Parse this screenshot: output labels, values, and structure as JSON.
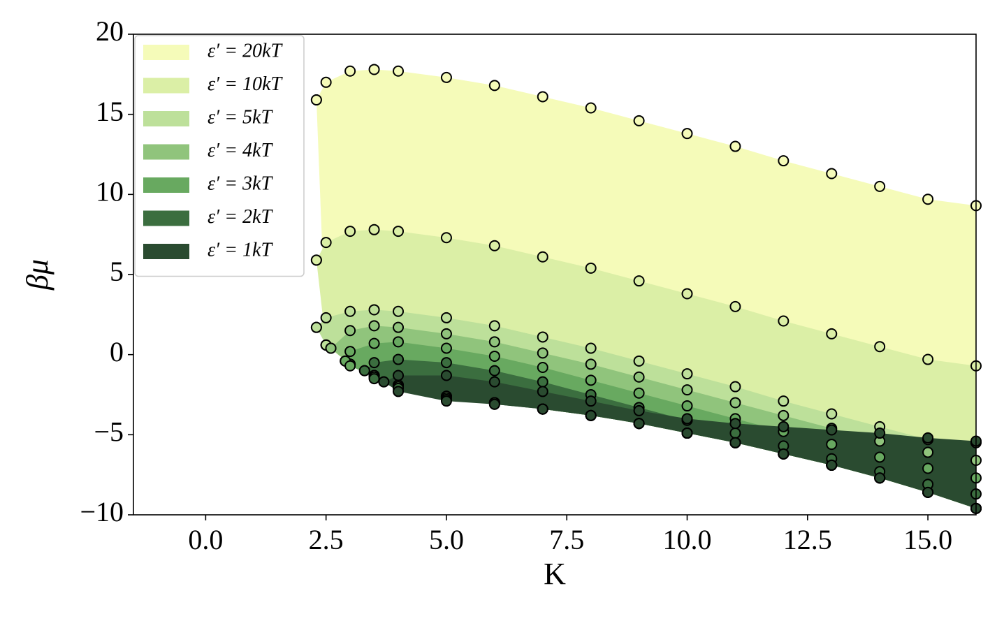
{
  "chart_data": {
    "type": "region-scatter",
    "xlabel": "K",
    "ylabel": "βμ",
    "xlim": [
      -1.5,
      16
    ],
    "ylim": [
      -10,
      20
    ],
    "xticks": [
      {
        "value": 0,
        "label": "0.0"
      },
      {
        "value": 2.5,
        "label": "2.5"
      },
      {
        "value": 5,
        "label": "5.0"
      },
      {
        "value": 7.5,
        "label": "7.5"
      },
      {
        "value": 10,
        "label": "10.0"
      },
      {
        "value": 12.5,
        "label": "12.5"
      },
      {
        "value": 15,
        "label": "15.0"
      }
    ],
    "yticks": [
      {
        "value": -10,
        "label": "−10"
      },
      {
        "value": -5,
        "label": "−5"
      },
      0,
      5,
      10,
      15,
      20
    ],
    "legend": "upper-left",
    "series": [
      {
        "name": "ε′ = 20kT",
        "color": "#f5fbb9",
        "x": [
          2.3,
          2.5,
          3,
          3.5,
          4,
          5,
          6,
          7,
          8,
          9,
          10,
          11,
          12,
          13,
          14,
          15,
          16
        ],
        "upper": [
          15.9,
          17.0,
          17.7,
          17.8,
          17.7,
          17.3,
          16.8,
          16.1,
          15.4,
          14.6,
          13.8,
          13.0,
          12.1,
          11.3,
          10.5,
          9.7,
          9.3
        ],
        "lower": [
          15.9,
          0.6,
          -0.6,
          -1.3,
          -1.9,
          -2.6,
          -3.0,
          -3.4,
          -3.8,
          -4.3,
          -4.9,
          -5.5,
          -6.2,
          -6.9,
          -7.7,
          -8.6,
          -9.6
        ]
      },
      {
        "name": "ε′ = 10kT",
        "color": "#dbefa6",
        "x": [
          2.3,
          2.5,
          3,
          3.5,
          4,
          5,
          6,
          7,
          8,
          9,
          10,
          11,
          12,
          13,
          14,
          15,
          16
        ],
        "upper": [
          5.9,
          7.0,
          7.7,
          7.8,
          7.7,
          7.3,
          6.8,
          6.1,
          5.4,
          4.6,
          3.8,
          3.0,
          2.1,
          1.3,
          0.5,
          -0.3,
          -0.7
        ],
        "lower": [
          5.9,
          0.6,
          -0.6,
          -1.3,
          -1.9,
          -2.6,
          -3.0,
          -3.4,
          -3.8,
          -4.3,
          -4.9,
          -5.5,
          -6.2,
          -6.9,
          -7.7,
          -8.6,
          -9.6
        ]
      },
      {
        "name": "ε′ = 5kT",
        "color": "#bde09a",
        "x": [
          2.3,
          2.5,
          3,
          3.5,
          4,
          5,
          6,
          7,
          8,
          9,
          10,
          11,
          12,
          13,
          14,
          15,
          16
        ],
        "upper": [
          1.7,
          2.3,
          2.7,
          2.8,
          2.7,
          2.3,
          1.8,
          1.1,
          0.4,
          -0.4,
          -1.2,
          -2.0,
          -2.9,
          -3.7,
          -4.5,
          -5.3,
          -5.5
        ],
        "lower": [
          1.7,
          0.6,
          -0.6,
          -1.3,
          -1.9,
          -2.6,
          -3.0,
          -3.4,
          -3.8,
          -4.3,
          -4.9,
          -5.5,
          -6.2,
          -6.9,
          -7.7,
          -8.6,
          -9.6
        ]
      },
      {
        "name": "ε′ = 4kT",
        "color": "#90c47c",
        "x": [
          2.6,
          3,
          3.5,
          4,
          5,
          6,
          7,
          8,
          9,
          10,
          11,
          12,
          13,
          14,
          15,
          16
        ],
        "upper": [
          0.4,
          1.5,
          1.8,
          1.7,
          1.3,
          0.8,
          0.1,
          -0.6,
          -1.4,
          -2.2,
          -3.0,
          -3.8,
          -4.6,
          -5.4,
          -6.1,
          -6.6
        ],
        "lower": [
          0.4,
          -0.6,
          -1.3,
          -1.9,
          -2.6,
          -3.0,
          -3.4,
          -3.8,
          -4.3,
          -4.9,
          -5.5,
          -6.2,
          -6.9,
          -7.7,
          -8.6,
          -9.6
        ]
      },
      {
        "name": "ε′ = 3kT",
        "color": "#68a960",
        "x": [
          2.9,
          3,
          3.5,
          4,
          5,
          6,
          7,
          8,
          9,
          10,
          11,
          12,
          13,
          14,
          15,
          16
        ],
        "upper": [
          -0.4,
          0.2,
          0.7,
          0.8,
          0.4,
          -0.1,
          -0.8,
          -1.6,
          -2.4,
          -3.2,
          -4.0,
          -4.8,
          -5.6,
          -6.4,
          -7.1,
          -7.7
        ],
        "lower": [
          -0.4,
          -0.7,
          -1.4,
          -2.0,
          -2.7,
          -3.0,
          -3.4,
          -3.8,
          -4.3,
          -4.9,
          -5.5,
          -6.2,
          -6.9,
          -7.7,
          -8.6,
          -9.6
        ]
      },
      {
        "name": "ε′ = 2kT",
        "color": "#3b6e3f",
        "x": [
          3.3,
          3.5,
          4,
          5,
          6,
          7,
          8,
          9,
          10,
          11,
          12,
          13,
          14,
          15,
          16
        ],
        "upper": [
          -1.0,
          -0.5,
          -0.3,
          -0.5,
          -1.0,
          -1.7,
          -2.5,
          -3.3,
          -4.1,
          -4.9,
          -5.7,
          -6.5,
          -7.3,
          -8.1,
          -8.7
        ],
        "lower": [
          -1.0,
          -1.5,
          -2.1,
          -2.8,
          -3.1,
          -3.4,
          -3.8,
          -4.3,
          -4.9,
          -5.5,
          -6.2,
          -6.9,
          -7.7,
          -8.6,
          -9.6
        ]
      },
      {
        "name": "ε′ = 1kT",
        "color": "#2a4b30",
        "x": [
          3.7,
          4,
          5,
          6,
          7,
          8,
          9,
          10,
          11,
          12,
          13,
          14,
          15,
          16
        ],
        "upper": [
          -1.7,
          -1.3,
          -1.3,
          -1.7,
          -2.3,
          -2.9,
          -3.5,
          -4.0,
          -4.3,
          -4.5,
          -4.7,
          -4.9,
          -5.2,
          -5.4
        ],
        "lower": [
          -1.7,
          -2.3,
          -2.9,
          -3.1,
          -3.4,
          -3.8,
          -4.3,
          -4.9,
          -5.5,
          -6.2,
          -6.9,
          -7.7,
          -8.6,
          -9.6
        ]
      }
    ]
  }
}
